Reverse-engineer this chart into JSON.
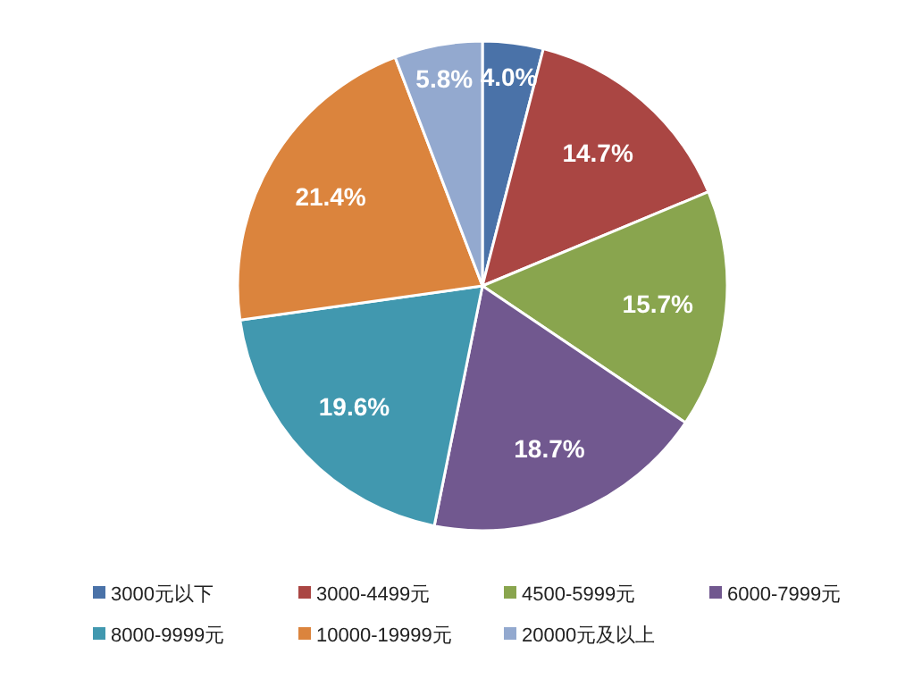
{
  "chart_data": {
    "type": "pie",
    "categories": [
      "3000元以下",
      "3000-4499元",
      "4500-5999元",
      "6000-7999元",
      "8000-9999元",
      "10000-19999元",
      "20000元及以上"
    ],
    "values": [
      4.0,
      14.7,
      15.7,
      18.7,
      19.6,
      21.4,
      5.8
    ],
    "colors": [
      "#4a72a8",
      "#aa4643",
      "#89a54e",
      "#71588f",
      "#4198af",
      "#db843d",
      "#93a9cf"
    ],
    "value_labels": [
      "4.0%",
      "14.7%",
      "15.7%",
      "18.7%",
      "19.6%",
      "21.4%",
      "5.8%"
    ],
    "legend": "bottom"
  }
}
